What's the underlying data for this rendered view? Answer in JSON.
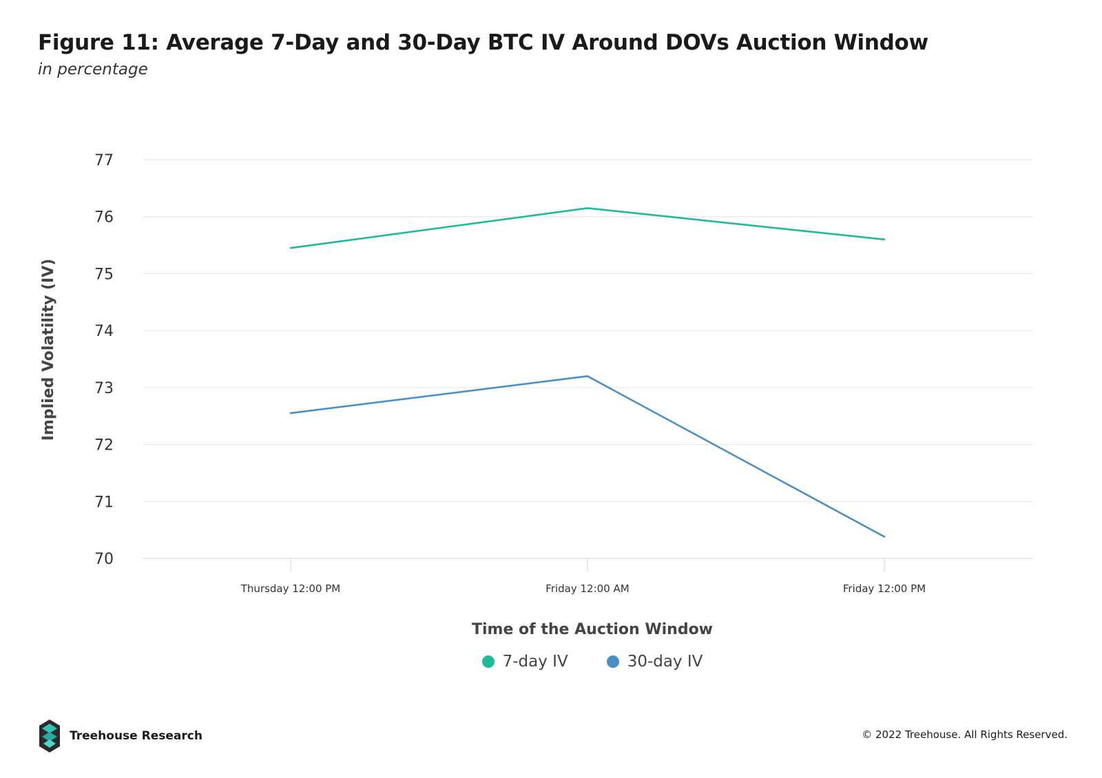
{
  "header": {
    "title": "Figure 11: Average 7-Day and 30-Day BTC IV Around DOVs Auction Window",
    "subtitle": "in percentage"
  },
  "chart_data": {
    "type": "line",
    "title": "Figure 11: Average 7-Day and 30-Day BTC IV Around DOVs Auction Window",
    "subtitle": "in percentage",
    "xlabel": "Time of the Auction Window",
    "ylabel": "Implied Volatility (IV)",
    "categories": [
      "Thursday 12:00 PM",
      "Friday 12:00 AM",
      "Friday 12:00 PM"
    ],
    "ylim": [
      70,
      77
    ],
    "yticks": [
      70,
      71,
      72,
      73,
      74,
      75,
      76,
      77
    ],
    "grid": true,
    "legend_position": "bottom-center",
    "series": [
      {
        "name": "7-day IV",
        "color": "#1ABC9C",
        "values": [
          75.45,
          76.15,
          75.6
        ]
      },
      {
        "name": "30-day IV",
        "color": "#4A90C8",
        "values": [
          72.55,
          73.2,
          70.38
        ]
      }
    ]
  },
  "footer": {
    "brand": "Treehouse Research",
    "copyright": "© 2022 Treehouse. All Rights Reserved."
  },
  "colors": {
    "grid": "#e6e6e6",
    "logo_dark": "#2b2b2b",
    "logo_teal": "#2ec4b6"
  }
}
